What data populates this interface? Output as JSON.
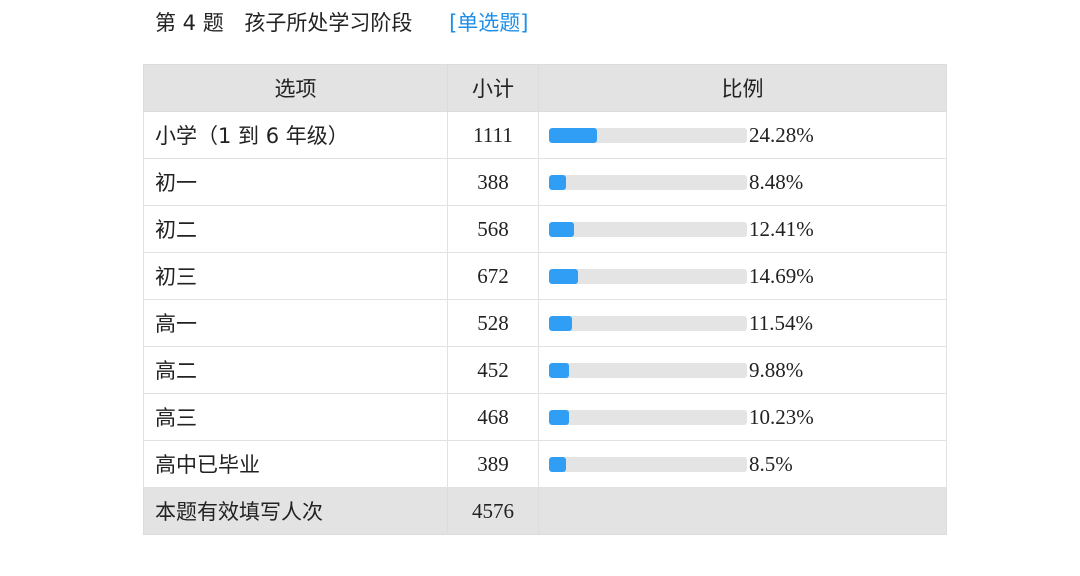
{
  "question": {
    "number": "第 4 题",
    "title": "孩子所处学习阶段",
    "type": "[单选题]"
  },
  "table": {
    "headers": {
      "option": "选项",
      "count": "小计",
      "ratio": "比例"
    },
    "rows": [
      {
        "option": "小学（1 到 6 年级）",
        "count": "1111",
        "percent": "24.28%",
        "fraction": 0.2428
      },
      {
        "option": "初一",
        "count": "388",
        "percent": "8.48%",
        "fraction": 0.0848
      },
      {
        "option": "初二",
        "count": "568",
        "percent": "12.41%",
        "fraction": 0.1241
      },
      {
        "option": "初三",
        "count": "672",
        "percent": "14.69%",
        "fraction": 0.1469
      },
      {
        "option": "高一",
        "count": "528",
        "percent": "11.54%",
        "fraction": 0.1154
      },
      {
        "option": "高二",
        "count": "452",
        "percent": "9.88%",
        "fraction": 0.0988
      },
      {
        "option": "高三",
        "count": "468",
        "percent": "10.23%",
        "fraction": 0.1023
      },
      {
        "option": "高中已毕业",
        "count": "389",
        "percent": "8.5%",
        "fraction": 0.085
      }
    ],
    "footer": {
      "label": "本题有效填写人次",
      "total": "4576"
    }
  },
  "colors": {
    "bar_fill": "#2f9ef4",
    "bar_track": "#e4e4e4",
    "type_link": "#1f8fe8",
    "header_bg": "#e3e3e3"
  }
}
